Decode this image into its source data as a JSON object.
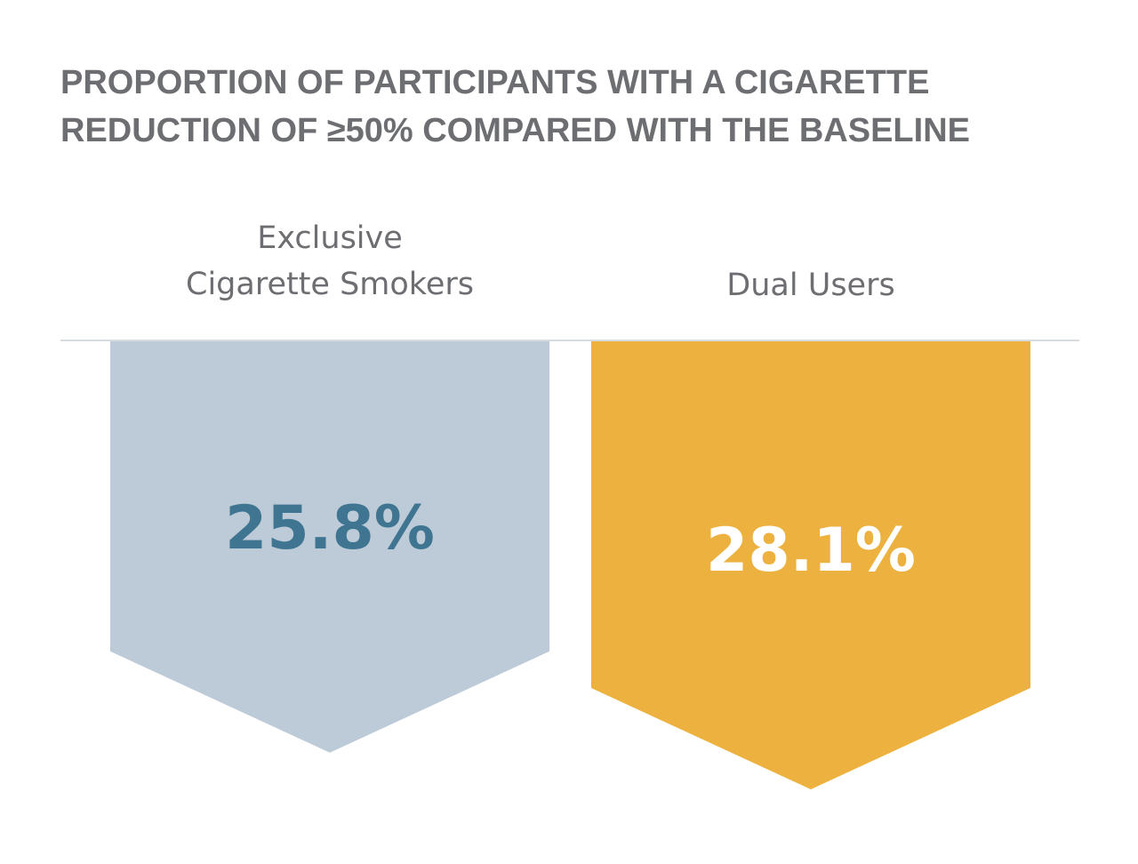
{
  "chart_data": {
    "type": "bar",
    "title": "PROPORTION OF PARTICIPANTS WITH A CIGARETTE REDUCTION OF ≥50% COMPARED WITH THE BASELINE",
    "title_lines": [
      "PROPORTION OF PARTICIPANTS WITH A CIGARETTE",
      "REDUCTION OF ≥50% COMPARED WITH THE BASELINE"
    ],
    "categories": [
      "Exclusive Cigarette Smokers",
      "Dual Users"
    ],
    "category_lines": [
      [
        "Exclusive",
        "Cigarette Smokers"
      ],
      [
        "Dual Users"
      ]
    ],
    "values": [
      25.8,
      28.1
    ],
    "value_labels": [
      "25.8%",
      "28.1%"
    ],
    "unit": "%",
    "orientation": "downward",
    "legend": "none",
    "grid": false,
    "colors": {
      "bars": [
        "#bccbd7",
        "#ecb13f"
      ],
      "value_text": [
        "#3f7591",
        "#ffffff"
      ],
      "title_text": "#6d6e71",
      "baseline": "#d9dcdf"
    }
  }
}
